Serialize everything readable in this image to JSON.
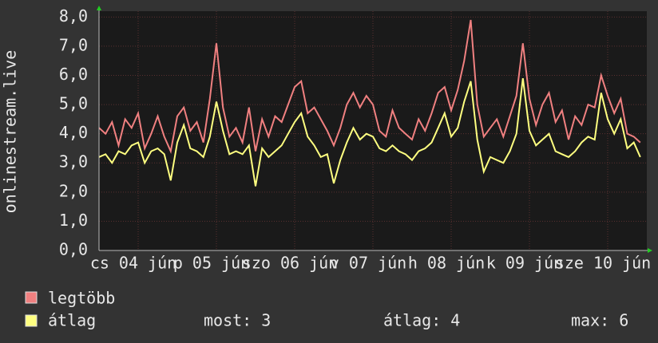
{
  "chart_data": {
    "type": "line",
    "y_label": "onlinestream.live",
    "x": [
      0,
      2,
      4,
      6,
      8,
      10,
      12,
      14,
      16,
      18,
      20,
      22,
      24,
      26,
      28,
      30,
      32,
      34,
      36,
      38,
      40,
      42,
      44,
      46,
      48,
      50,
      52,
      54,
      56,
      58,
      60,
      62,
      64,
      66,
      68,
      70,
      72,
      74,
      76,
      78,
      80,
      82,
      84,
      86,
      88,
      90,
      92,
      94,
      96,
      98,
      100,
      102,
      104,
      106,
      108,
      110,
      112,
      114,
      116,
      118,
      120,
      122,
      124,
      126,
      128,
      130,
      132,
      134,
      136,
      138,
      140,
      142,
      144,
      146,
      148,
      150,
      152,
      154,
      156,
      158,
      160,
      162,
      164,
      166
    ],
    "xlim": [
      0,
      168
    ],
    "xticks": [
      {
        "value": 12,
        "label": "cs 04 jún"
      },
      {
        "value": 36,
        "label": "p 05 jún"
      },
      {
        "value": 60,
        "label": "szo 06 jún"
      },
      {
        "value": 84,
        "label": "v 07 jún"
      },
      {
        "value": 108,
        "label": "h 08 jún"
      },
      {
        "value": 132,
        "label": "k 09 jún"
      },
      {
        "value": 156,
        "label": "sze 10 jún"
      }
    ],
    "ylim": [
      0,
      8.2
    ],
    "yticks": [
      {
        "value": 0,
        "label": "0,0"
      },
      {
        "value": 1,
        "label": "1,0"
      },
      {
        "value": 2,
        "label": "2,0"
      },
      {
        "value": 3,
        "label": "3,0"
      },
      {
        "value": 4,
        "label": "4,0"
      },
      {
        "value": 5,
        "label": "5,0"
      },
      {
        "value": 6,
        "label": "6,0"
      },
      {
        "value": 7,
        "label": "7,0"
      },
      {
        "value": 8,
        "label": "8,0"
      }
    ],
    "grid": true,
    "series": [
      {
        "name": "legtöbb",
        "color": "#f08080",
        "values": [
          4.2,
          4.0,
          4.4,
          3.6,
          4.5,
          4.2,
          4.7,
          3.5,
          4.0,
          4.6,
          3.9,
          3.4,
          4.6,
          4.9,
          4.1,
          4.4,
          3.7,
          5.2,
          7.1,
          4.9,
          3.9,
          4.2,
          3.7,
          4.9,
          3.4,
          4.5,
          3.9,
          4.6,
          4.4,
          5.0,
          5.6,
          5.8,
          4.7,
          4.9,
          4.5,
          4.1,
          3.6,
          4.2,
          5.0,
          5.4,
          4.9,
          5.3,
          5.0,
          4.1,
          3.9,
          4.8,
          4.2,
          4.0,
          3.8,
          4.5,
          4.1,
          4.7,
          5.4,
          5.6,
          4.8,
          5.5,
          6.5,
          7.9,
          5.0,
          3.9,
          4.2,
          4.5,
          3.9,
          4.6,
          5.3,
          7.1,
          5.2,
          4.3,
          5.0,
          5.4,
          4.4,
          4.8,
          3.8,
          4.6,
          4.3,
          5.0,
          4.9,
          6.0,
          5.3,
          4.7,
          5.2,
          4.0,
          3.9,
          3.7
        ]
      },
      {
        "name": "átlag",
        "color": "#ffff80",
        "values": [
          3.2,
          3.3,
          3.0,
          3.4,
          3.3,
          3.6,
          3.7,
          3.0,
          3.4,
          3.5,
          3.3,
          2.4,
          3.7,
          4.3,
          3.5,
          3.4,
          3.2,
          3.9,
          5.1,
          4.1,
          3.3,
          3.4,
          3.3,
          3.6,
          2.2,
          3.5,
          3.2,
          3.4,
          3.6,
          4.0,
          4.4,
          4.7,
          3.9,
          3.6,
          3.2,
          3.3,
          2.3,
          3.1,
          3.7,
          4.2,
          3.8,
          4.0,
          3.9,
          3.5,
          3.4,
          3.6,
          3.4,
          3.3,
          3.1,
          3.4,
          3.5,
          3.7,
          4.2,
          4.7,
          3.9,
          4.2,
          5.1,
          5.8,
          3.8,
          2.7,
          3.2,
          3.1,
          3.0,
          3.4,
          4.0,
          5.9,
          4.1,
          3.6,
          3.8,
          4.0,
          3.4,
          3.3,
          3.2,
          3.4,
          3.7,
          3.9,
          3.8,
          5.4,
          4.5,
          4.0,
          4.5,
          3.5,
          3.7,
          3.2
        ]
      }
    ],
    "stats": [
      "most: 3",
      "átlag: 4",
      "max: 6"
    ]
  }
}
